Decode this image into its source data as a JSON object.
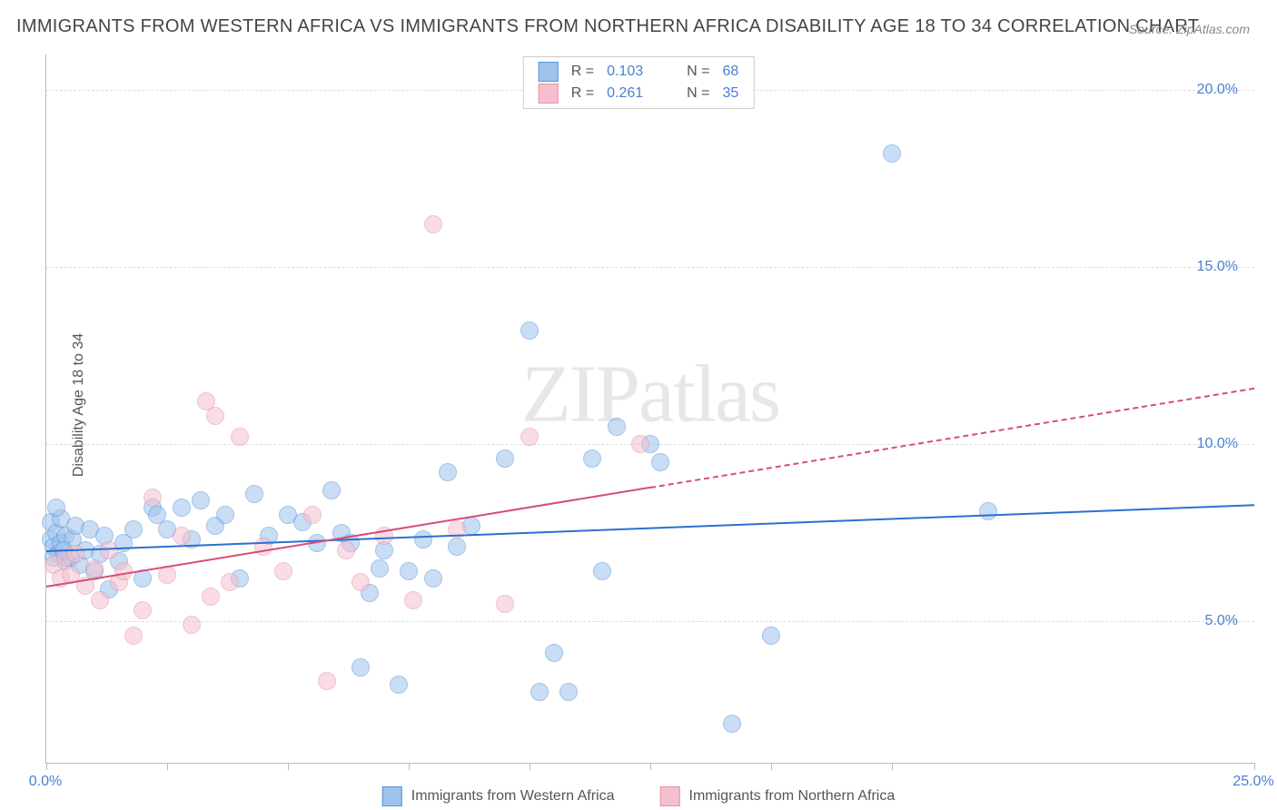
{
  "title": "IMMIGRANTS FROM WESTERN AFRICA VS IMMIGRANTS FROM NORTHERN AFRICA DISABILITY AGE 18 TO 34 CORRELATION CHART",
  "source": "Source: ZipAtlas.com",
  "y_axis_label": "Disability Age 18 to 34",
  "watermark": "ZIPatlas",
  "chart": {
    "type": "scatter",
    "xlim": [
      0,
      25
    ],
    "ylim": [
      1,
      21
    ],
    "x_ticks": [
      0,
      2.5,
      5,
      7.5,
      10,
      12.5,
      15,
      17.5,
      25
    ],
    "x_tick_labels": {
      "0": "0.0%",
      "25": "25.0%"
    },
    "y_ticks": [
      5,
      10,
      15,
      20
    ],
    "y_tick_labels": {
      "5": "5.0%",
      "10": "10.0%",
      "15": "15.0%",
      "20": "20.0%"
    },
    "background_color": "#ffffff",
    "grid_color": "#dddddd",
    "axis_color": "#bbbbbb",
    "tick_label_color": "#4a7fd4",
    "point_radius": 9,
    "point_opacity": 0.55
  },
  "series": [
    {
      "name": "Immigrants from Western Africa",
      "fill_color": "#9dc3ee",
      "stroke_color": "#5a93d8",
      "line_color": "#2c6fd1",
      "r_label": "R =",
      "r_value": "0.103",
      "n_label": "N =",
      "n_value": "68",
      "trend": {
        "x1": 0,
        "y1": 7.0,
        "x2": 25,
        "y2": 8.3,
        "dashed_from": null
      },
      "points": [
        [
          0.1,
          7.3
        ],
        [
          0.1,
          7.8
        ],
        [
          0.15,
          7.1
        ],
        [
          0.2,
          7.5
        ],
        [
          0.25,
          6.9
        ],
        [
          0.3,
          7.2
        ],
        [
          0.3,
          7.9
        ],
        [
          0.4,
          6.7
        ],
        [
          0.4,
          7.4
        ],
        [
          0.5,
          6.8
        ],
        [
          0.55,
          7.3
        ],
        [
          0.6,
          7.7
        ],
        [
          0.7,
          6.6
        ],
        [
          0.8,
          7.0
        ],
        [
          0.9,
          7.6
        ],
        [
          1.0,
          6.4
        ],
        [
          1.1,
          6.9
        ],
        [
          1.2,
          7.4
        ],
        [
          1.3,
          5.9
        ],
        [
          1.5,
          6.7
        ],
        [
          1.8,
          7.6
        ],
        [
          2.0,
          6.2
        ],
        [
          2.2,
          8.2
        ],
        [
          2.3,
          8.0
        ],
        [
          2.5,
          7.6
        ],
        [
          2.8,
          8.2
        ],
        [
          3.0,
          7.3
        ],
        [
          3.2,
          8.4
        ],
        [
          3.5,
          7.7
        ],
        [
          3.7,
          8.0
        ],
        [
          4.0,
          6.2
        ],
        [
          4.3,
          8.6
        ],
        [
          4.6,
          7.4
        ],
        [
          5.0,
          8.0
        ],
        [
          5.3,
          7.8
        ],
        [
          5.6,
          7.2
        ],
        [
          5.9,
          8.7
        ],
        [
          6.1,
          7.5
        ],
        [
          6.3,
          7.2
        ],
        [
          6.5,
          3.7
        ],
        [
          6.7,
          5.8
        ],
        [
          6.9,
          6.5
        ],
        [
          7.0,
          7.0
        ],
        [
          7.3,
          3.2
        ],
        [
          7.5,
          6.4
        ],
        [
          7.8,
          7.3
        ],
        [
          8.0,
          6.2
        ],
        [
          8.3,
          9.2
        ],
        [
          8.5,
          7.1
        ],
        [
          8.8,
          7.7
        ],
        [
          9.5,
          9.6
        ],
        [
          10.0,
          13.2
        ],
        [
          10.2,
          3.0
        ],
        [
          10.5,
          4.1
        ],
        [
          10.8,
          3.0
        ],
        [
          11.3,
          9.6
        ],
        [
          11.5,
          6.4
        ],
        [
          11.8,
          10.5
        ],
        [
          12.5,
          10.0
        ],
        [
          12.7,
          9.5
        ],
        [
          14.2,
          2.1
        ],
        [
          15.0,
          4.6
        ],
        [
          17.5,
          18.2
        ],
        [
          19.5,
          8.1
        ],
        [
          0.2,
          8.2
        ],
        [
          0.15,
          6.8
        ],
        [
          0.35,
          7.0
        ],
        [
          1.6,
          7.2
        ]
      ]
    },
    {
      "name": "Immigrants from Northern Africa",
      "fill_color": "#f5c0ce",
      "stroke_color": "#e792a8",
      "line_color": "#d64e73",
      "r_label": "R =",
      "r_value": "0.261",
      "n_label": "N =",
      "n_value": "35",
      "trend": {
        "x1": 0,
        "y1": 6.0,
        "x2": 25,
        "y2": 11.6,
        "dashed_from": 12.5
      },
      "points": [
        [
          0.15,
          6.6
        ],
        [
          0.3,
          6.2
        ],
        [
          0.4,
          6.8
        ],
        [
          0.5,
          6.3
        ],
        [
          0.6,
          6.9
        ],
        [
          0.8,
          6.0
        ],
        [
          1.0,
          6.5
        ],
        [
          1.1,
          5.6
        ],
        [
          1.3,
          7.0
        ],
        [
          1.5,
          6.1
        ],
        [
          1.6,
          6.4
        ],
        [
          1.8,
          4.6
        ],
        [
          2.0,
          5.3
        ],
        [
          2.2,
          8.5
        ],
        [
          2.5,
          6.3
        ],
        [
          2.8,
          7.4
        ],
        [
          3.0,
          4.9
        ],
        [
          3.3,
          11.2
        ],
        [
          3.5,
          10.8
        ],
        [
          3.8,
          6.1
        ],
        [
          4.0,
          10.2
        ],
        [
          4.5,
          7.1
        ],
        [
          4.9,
          6.4
        ],
        [
          3.4,
          5.7
        ],
        [
          5.5,
          8.0
        ],
        [
          5.8,
          3.3
        ],
        [
          6.2,
          7.0
        ],
        [
          6.5,
          6.1
        ],
        [
          7.0,
          7.4
        ],
        [
          7.6,
          5.6
        ],
        [
          8.0,
          16.2
        ],
        [
          8.5,
          7.6
        ],
        [
          9.5,
          5.5
        ],
        [
          10.0,
          10.2
        ],
        [
          12.3,
          10.0
        ]
      ]
    }
  ]
}
